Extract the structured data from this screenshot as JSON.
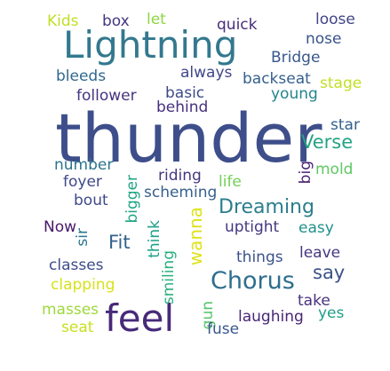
{
  "words": [
    {
      "text": "thunder",
      "color": "#3d4e8a"
    },
    {
      "text": "Lightning",
      "color": "#33788e"
    },
    {
      "text": "feel",
      "color": "#472a79"
    },
    {
      "text": "Chorus",
      "color": "#2d6e8e"
    },
    {
      "text": "Dreaming",
      "color": "#2b7e8e"
    },
    {
      "text": "Verse",
      "color": "#25a384"
    },
    {
      "text": "wanna",
      "color": "#dde318"
    },
    {
      "text": "say",
      "color": "#3b5289"
    },
    {
      "text": "Fit",
      "color": "#33628d"
    },
    {
      "text": "Kids",
      "color": "#c0df25"
    },
    {
      "text": "box",
      "color": "#453781"
    },
    {
      "text": "let",
      "color": "#8ed645"
    },
    {
      "text": "quick",
      "color": "#472d7b"
    },
    {
      "text": "loose",
      "color": "#414487"
    },
    {
      "text": "nose",
      "color": "#3a538b"
    },
    {
      "text": "Bridge",
      "color": "#39568c"
    },
    {
      "text": "always",
      "color": "#3f4788"
    },
    {
      "text": "bleeds",
      "color": "#31688e"
    },
    {
      "text": "backseat",
      "color": "#35608d"
    },
    {
      "text": "stage",
      "color": "#c2df23"
    },
    {
      "text": "young",
      "color": "#25858e"
    },
    {
      "text": "follower",
      "color": "#463480"
    },
    {
      "text": "basic",
      "color": "#3e4a89"
    },
    {
      "text": "behind",
      "color": "#46307e"
    },
    {
      "text": "star",
      "color": "#34608d"
    },
    {
      "text": "number",
      "color": "#2c738e"
    },
    {
      "text": "big",
      "color": "#481f70"
    },
    {
      "text": "mold",
      "color": "#5ec962"
    },
    {
      "text": "riding",
      "color": "#453882"
    },
    {
      "text": "foyer",
      "color": "#3f4889"
    },
    {
      "text": "life",
      "color": "#73d055"
    },
    {
      "text": "scheming",
      "color": "#355f8d"
    },
    {
      "text": "bigger",
      "color": "#20a486"
    },
    {
      "text": "bout",
      "color": "#3e4989"
    },
    {
      "text": "think",
      "color": "#1fa188"
    },
    {
      "text": "uptight",
      "color": "#453781"
    },
    {
      "text": "easy",
      "color": "#21918c"
    },
    {
      "text": "Now",
      "color": "#48186a"
    },
    {
      "text": "sir",
      "color": "#2a778e"
    },
    {
      "text": "leave",
      "color": "#453781"
    },
    {
      "text": "things",
      "color": "#3b528b"
    },
    {
      "text": "classes",
      "color": "#3e4c8a"
    },
    {
      "text": "smiling",
      "color": "#2ab07f"
    },
    {
      "text": "clapping",
      "color": "#d8e219"
    },
    {
      "text": "take",
      "color": "#46337e"
    },
    {
      "text": "gun",
      "color": "#54c568"
    },
    {
      "text": "masses",
      "color": "#9dd93b"
    },
    {
      "text": "yes",
      "color": "#1f9e89"
    },
    {
      "text": "laughing",
      "color": "#482576"
    },
    {
      "text": "seat",
      "color": "#c8e020"
    },
    {
      "text": "fuse",
      "color": "#39568c"
    }
  ]
}
